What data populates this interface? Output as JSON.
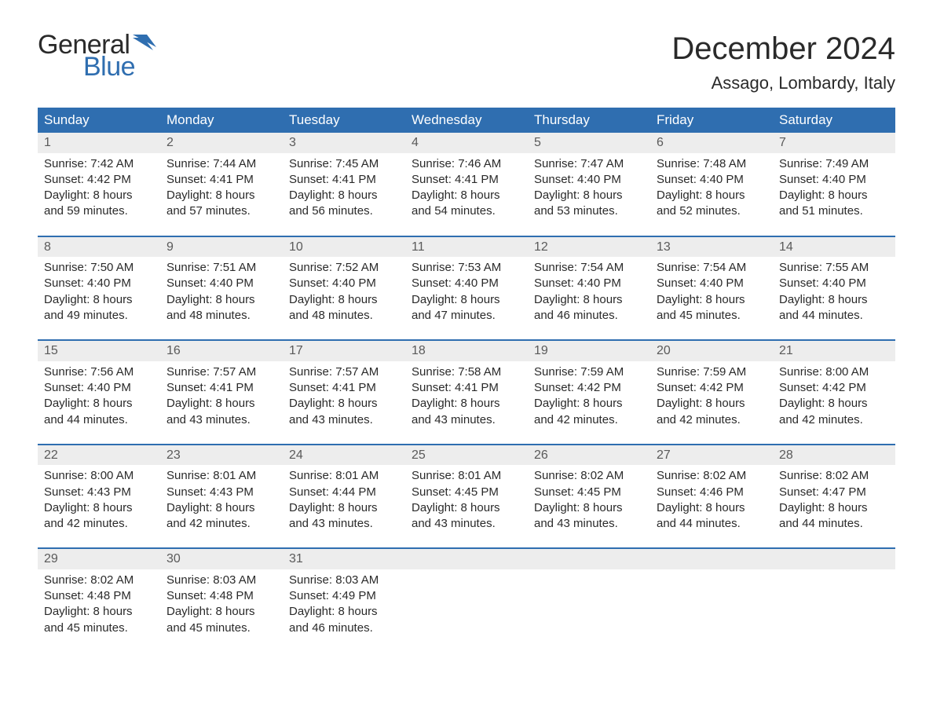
{
  "brand": {
    "word1": "General",
    "word2": "Blue",
    "flag_color": "#2f6eb0"
  },
  "title": "December 2024",
  "location": "Assago, Lombardy, Italy",
  "colors": {
    "header_bg": "#2f6eb0",
    "header_text": "#ffffff",
    "daynum_bg": "#ededed",
    "daynum_text": "#5a5a5a",
    "body_text": "#2a2a2a",
    "week_border": "#2f6eb0",
    "background": "#ffffff"
  },
  "typography": {
    "title_fontsize": 40,
    "location_fontsize": 22,
    "weekday_fontsize": 17,
    "cell_fontsize": 15
  },
  "weekdays": [
    "Sunday",
    "Monday",
    "Tuesday",
    "Wednesday",
    "Thursday",
    "Friday",
    "Saturday"
  ],
  "labels": {
    "sunrise": "Sunrise:",
    "sunset": "Sunset:",
    "daylight": "Daylight:"
  },
  "weeks": [
    [
      {
        "n": 1,
        "sunrise": "7:42 AM",
        "sunset": "4:42 PM",
        "dl": "8 hours and 59 minutes."
      },
      {
        "n": 2,
        "sunrise": "7:44 AM",
        "sunset": "4:41 PM",
        "dl": "8 hours and 57 minutes."
      },
      {
        "n": 3,
        "sunrise": "7:45 AM",
        "sunset": "4:41 PM",
        "dl": "8 hours and 56 minutes."
      },
      {
        "n": 4,
        "sunrise": "7:46 AM",
        "sunset": "4:41 PM",
        "dl": "8 hours and 54 minutes."
      },
      {
        "n": 5,
        "sunrise": "7:47 AM",
        "sunset": "4:40 PM",
        "dl": "8 hours and 53 minutes."
      },
      {
        "n": 6,
        "sunrise": "7:48 AM",
        "sunset": "4:40 PM",
        "dl": "8 hours and 52 minutes."
      },
      {
        "n": 7,
        "sunrise": "7:49 AM",
        "sunset": "4:40 PM",
        "dl": "8 hours and 51 minutes."
      }
    ],
    [
      {
        "n": 8,
        "sunrise": "7:50 AM",
        "sunset": "4:40 PM",
        "dl": "8 hours and 49 minutes."
      },
      {
        "n": 9,
        "sunrise": "7:51 AM",
        "sunset": "4:40 PM",
        "dl": "8 hours and 48 minutes."
      },
      {
        "n": 10,
        "sunrise": "7:52 AM",
        "sunset": "4:40 PM",
        "dl": "8 hours and 48 minutes."
      },
      {
        "n": 11,
        "sunrise": "7:53 AM",
        "sunset": "4:40 PM",
        "dl": "8 hours and 47 minutes."
      },
      {
        "n": 12,
        "sunrise": "7:54 AM",
        "sunset": "4:40 PM",
        "dl": "8 hours and 46 minutes."
      },
      {
        "n": 13,
        "sunrise": "7:54 AM",
        "sunset": "4:40 PM",
        "dl": "8 hours and 45 minutes."
      },
      {
        "n": 14,
        "sunrise": "7:55 AM",
        "sunset": "4:40 PM",
        "dl": "8 hours and 44 minutes."
      }
    ],
    [
      {
        "n": 15,
        "sunrise": "7:56 AM",
        "sunset": "4:40 PM",
        "dl": "8 hours and 44 minutes."
      },
      {
        "n": 16,
        "sunrise": "7:57 AM",
        "sunset": "4:41 PM",
        "dl": "8 hours and 43 minutes."
      },
      {
        "n": 17,
        "sunrise": "7:57 AM",
        "sunset": "4:41 PM",
        "dl": "8 hours and 43 minutes."
      },
      {
        "n": 18,
        "sunrise": "7:58 AM",
        "sunset": "4:41 PM",
        "dl": "8 hours and 43 minutes."
      },
      {
        "n": 19,
        "sunrise": "7:59 AM",
        "sunset": "4:42 PM",
        "dl": "8 hours and 42 minutes."
      },
      {
        "n": 20,
        "sunrise": "7:59 AM",
        "sunset": "4:42 PM",
        "dl": "8 hours and 42 minutes."
      },
      {
        "n": 21,
        "sunrise": "8:00 AM",
        "sunset": "4:42 PM",
        "dl": "8 hours and 42 minutes."
      }
    ],
    [
      {
        "n": 22,
        "sunrise": "8:00 AM",
        "sunset": "4:43 PM",
        "dl": "8 hours and 42 minutes."
      },
      {
        "n": 23,
        "sunrise": "8:01 AM",
        "sunset": "4:43 PM",
        "dl": "8 hours and 42 minutes."
      },
      {
        "n": 24,
        "sunrise": "8:01 AM",
        "sunset": "4:44 PM",
        "dl": "8 hours and 43 minutes."
      },
      {
        "n": 25,
        "sunrise": "8:01 AM",
        "sunset": "4:45 PM",
        "dl": "8 hours and 43 minutes."
      },
      {
        "n": 26,
        "sunrise": "8:02 AM",
        "sunset": "4:45 PM",
        "dl": "8 hours and 43 minutes."
      },
      {
        "n": 27,
        "sunrise": "8:02 AM",
        "sunset": "4:46 PM",
        "dl": "8 hours and 44 minutes."
      },
      {
        "n": 28,
        "sunrise": "8:02 AM",
        "sunset": "4:47 PM",
        "dl": "8 hours and 44 minutes."
      }
    ],
    [
      {
        "n": 29,
        "sunrise": "8:02 AM",
        "sunset": "4:48 PM",
        "dl": "8 hours and 45 minutes."
      },
      {
        "n": 30,
        "sunrise": "8:03 AM",
        "sunset": "4:48 PM",
        "dl": "8 hours and 45 minutes."
      },
      {
        "n": 31,
        "sunrise": "8:03 AM",
        "sunset": "4:49 PM",
        "dl": "8 hours and 46 minutes."
      },
      null,
      null,
      null,
      null
    ]
  ]
}
